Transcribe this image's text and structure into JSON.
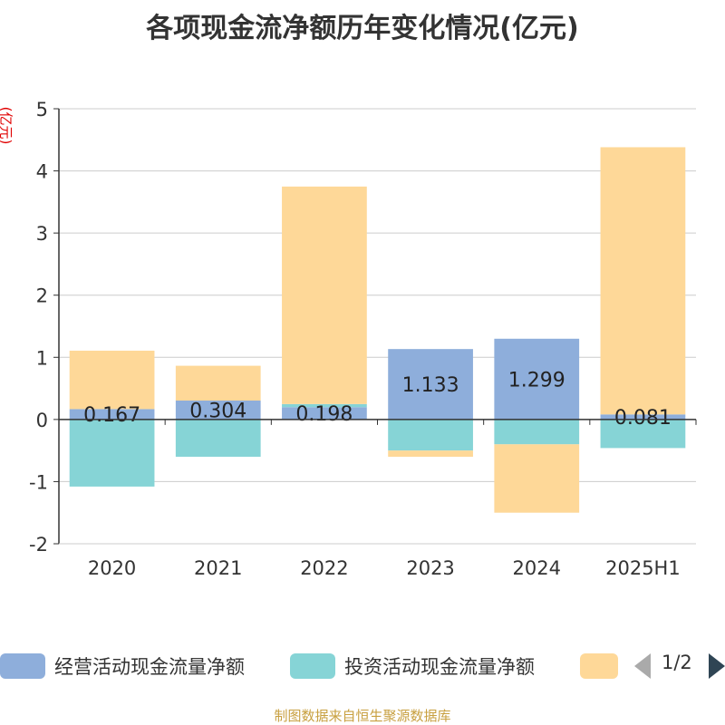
{
  "title": "各项现金流净额历年变化情况(亿元)",
  "y_unit_label": "(亿元)",
  "footer": "制图数据来自恒生聚源数据库",
  "legend": {
    "items": [
      {
        "label": "经营活动现金流量净额",
        "color": "#8eaedb"
      },
      {
        "label": "投资活动现金流量净额",
        "color": "#86d4d6"
      },
      {
        "label": "",
        "color": "#fed898"
      }
    ],
    "pager": "1/2"
  },
  "chart_data": {
    "type": "bar",
    "stacked": true,
    "categories": [
      "2020",
      "2021",
      "2022",
      "2023",
      "2024",
      "2025H1"
    ],
    "ylim": [
      -2,
      5
    ],
    "yticks": [
      5,
      4,
      3,
      2,
      1,
      0,
      -1,
      -2
    ],
    "grid": true,
    "legend_position": "bottom",
    "series": [
      {
        "name": "经营活动现金流量净额",
        "color": "#8eaedb",
        "values": [
          0.167,
          0.304,
          0.198,
          1.133,
          1.299,
          0.081
        ],
        "data_labels": [
          "0.167",
          "0.304",
          "0.198",
          "1.133",
          "1.299",
          "0.081"
        ]
      },
      {
        "color": "#86d4d6",
        "values": [
          -1.08,
          -0.6,
          0.05,
          -0.5,
          -0.4,
          -0.46
        ]
      },
      {
        "color": "#fed898",
        "values": [
          0.94,
          0.56,
          3.5,
          -0.1,
          -1.1,
          4.3
        ]
      }
    ]
  }
}
